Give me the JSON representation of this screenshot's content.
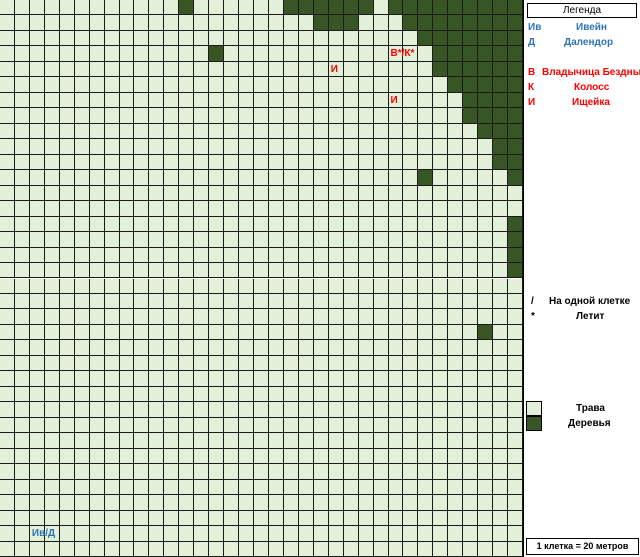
{
  "map": {
    "cols": 35,
    "rows": 36,
    "grass_color": "#e2f0d9",
    "tree_color": "#375623",
    "tree_cells": [
      [
        0,
        12
      ],
      [
        0,
        19
      ],
      [
        0,
        20
      ],
      [
        0,
        21
      ],
      [
        0,
        22
      ],
      [
        0,
        23
      ],
      [
        0,
        24
      ],
      [
        0,
        26
      ],
      [
        0,
        27
      ],
      [
        0,
        28
      ],
      [
        0,
        29
      ],
      [
        0,
        30
      ],
      [
        0,
        31
      ],
      [
        0,
        32
      ],
      [
        0,
        33
      ],
      [
        0,
        34
      ],
      [
        1,
        21
      ],
      [
        1,
        22
      ],
      [
        1,
        23
      ],
      [
        1,
        27
      ],
      [
        1,
        28
      ],
      [
        1,
        29
      ],
      [
        1,
        30
      ],
      [
        1,
        31
      ],
      [
        1,
        32
      ],
      [
        1,
        33
      ],
      [
        1,
        34
      ],
      [
        2,
        28
      ],
      [
        2,
        29
      ],
      [
        2,
        30
      ],
      [
        2,
        31
      ],
      [
        2,
        32
      ],
      [
        2,
        33
      ],
      [
        2,
        34
      ],
      [
        3,
        14
      ],
      [
        3,
        29
      ],
      [
        3,
        30
      ],
      [
        3,
        31
      ],
      [
        3,
        32
      ],
      [
        3,
        33
      ],
      [
        3,
        34
      ],
      [
        4,
        29
      ],
      [
        4,
        30
      ],
      [
        4,
        31
      ],
      [
        4,
        32
      ],
      [
        4,
        33
      ],
      [
        4,
        34
      ],
      [
        5,
        30
      ],
      [
        5,
        31
      ],
      [
        5,
        32
      ],
      [
        5,
        33
      ],
      [
        5,
        34
      ],
      [
        6,
        31
      ],
      [
        6,
        32
      ],
      [
        6,
        33
      ],
      [
        6,
        34
      ],
      [
        7,
        31
      ],
      [
        7,
        32
      ],
      [
        7,
        33
      ],
      [
        7,
        34
      ],
      [
        8,
        32
      ],
      [
        8,
        33
      ],
      [
        8,
        34
      ],
      [
        9,
        33
      ],
      [
        9,
        34
      ],
      [
        10,
        33
      ],
      [
        10,
        34
      ],
      [
        11,
        28
      ],
      [
        11,
        34
      ],
      [
        14,
        34
      ],
      [
        15,
        34
      ],
      [
        16,
        34
      ],
      [
        17,
        34
      ],
      [
        21,
        32
      ]
    ],
    "markers": [
      {
        "text": "В*/К*",
        "row": 3,
        "col": 26,
        "color": "#ff0000"
      },
      {
        "text": "И",
        "row": 4,
        "col": 22,
        "color": "#ff0000"
      },
      {
        "text": "И",
        "row": 6,
        "col": 26,
        "color": "#ff0000"
      },
      {
        "text": "Ив/Д",
        "row": 34,
        "col": 2,
        "color": "#2e75b6"
      }
    ]
  },
  "legend": {
    "title": "Легенда",
    "allies": [
      {
        "code": "Ив",
        "name": "Ивейн"
      },
      {
        "code": "Д",
        "name": "Далендор"
      }
    ],
    "enemies": [
      {
        "code": "В",
        "name": "Владычица Бездны"
      },
      {
        "code": "К",
        "name": "Колосс"
      },
      {
        "code": "И",
        "name": "Ищейка"
      }
    ],
    "symbols": [
      {
        "sym": "/",
        "desc": "На одной клетке"
      },
      {
        "sym": "*",
        "desc": "Летит"
      }
    ],
    "terrain": [
      {
        "type": "grass",
        "label": "Трава"
      },
      {
        "type": "trees",
        "label": "Деревья"
      }
    ],
    "scale": "1 клетка = 20 метров",
    "ally_color": "#2e75b6",
    "enemy_color": "#ff0000"
  }
}
